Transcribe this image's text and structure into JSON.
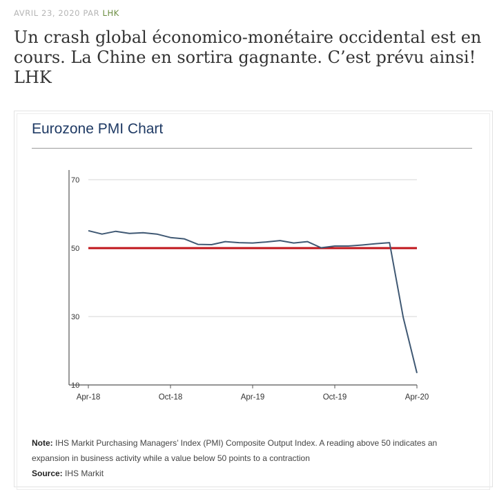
{
  "post": {
    "date": "AVRIL 23, 2020",
    "by": "PAR",
    "author": "LHK",
    "title": "Un crash global économico-monétaire occidental est en cours. La Chine en sortira gagnante. C’est prévu ainsi! LHK"
  },
  "chart_data": {
    "type": "line",
    "title": "Eurozone PMI Chart",
    "xlabel": "",
    "ylabel": "",
    "ylim": [
      10,
      70
    ],
    "yticks": [
      10,
      30,
      50,
      70
    ],
    "xtick_labels": [
      "Apr-18",
      "Oct-18",
      "Apr-19",
      "Oct-19",
      "Apr-20"
    ],
    "x": [
      "Apr-18",
      "May-18",
      "Jun-18",
      "Jul-18",
      "Aug-18",
      "Sep-18",
      "Oct-18",
      "Nov-18",
      "Dec-18",
      "Jan-19",
      "Feb-19",
      "Mar-19",
      "Apr-19",
      "May-19",
      "Jun-19",
      "Jul-19",
      "Aug-19",
      "Sep-19",
      "Oct-19",
      "Nov-19",
      "Dec-19",
      "Jan-20",
      "Feb-20",
      "Mar-20",
      "Apr-20"
    ],
    "series": [
      {
        "values": [
          55.1,
          54.1,
          54.9,
          54.3,
          54.5,
          54.1,
          53.1,
          52.7,
          51.1,
          51.0,
          51.9,
          51.6,
          51.5,
          51.8,
          52.2,
          51.5,
          51.9,
          50.1,
          50.6,
          50.6,
          50.9,
          51.3,
          51.6,
          29.7,
          13.5
        ],
        "color": "#3f5873"
      }
    ],
    "reference_line": {
      "value": 50,
      "color": "#c0151b"
    },
    "grid": true,
    "note_label": "Note:",
    "note": "IHS Markit Purchasing Managers’ Index (PMI) Composite Output Index. A reading above 50 indicates an expansion in business activity while a value below 50 points to a contraction",
    "source_label": "Source:",
    "source": "IHS Markit"
  }
}
